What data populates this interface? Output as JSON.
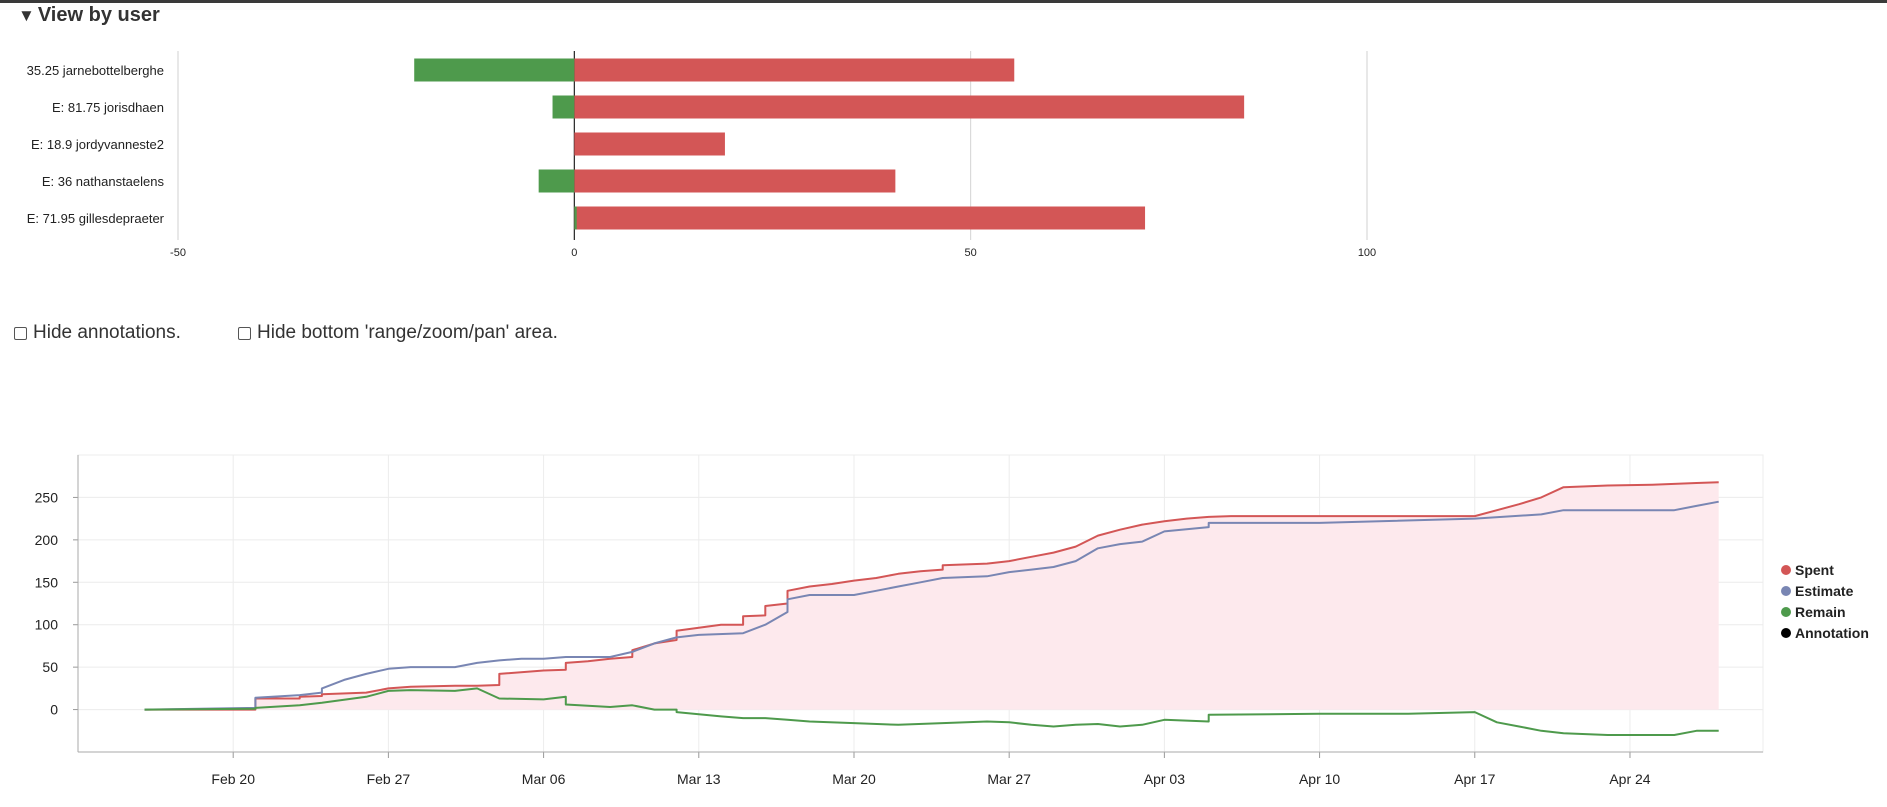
{
  "section": {
    "toggle_icon": "triangle-down-icon",
    "title": "View by user"
  },
  "options": {
    "hide_annotations": "Hide annotations.",
    "hide_bottom_area": "Hide bottom 'range/zoom/pan' area.",
    "hide_annotations_checked": false,
    "hide_bottom_area_checked": false
  },
  "colors": {
    "spent": "#d35656",
    "estimate": "#7986b3",
    "remain": "#4e9a4c",
    "annotation": "#000000",
    "fill": "#fde9ed"
  },
  "chart_data": [
    {
      "type": "bar",
      "orientation": "horizontal",
      "categories": [
        "35.25 jarnebottelberghe",
        "E: 81.75 jorisdhaen",
        "E: 18.9 jordyvanneste2",
        "E: 36 nathanstaelens",
        "E: 71.95 gillesdepraeter"
      ],
      "series": [
        {
          "color": "#d35656",
          "values": [
            55.5,
            84.5,
            19,
            40.5,
            72
          ]
        },
        {
          "color": "#4e9a4c",
          "values": [
            -20.2,
            -2.75,
            0,
            -4.5,
            0.3
          ]
        }
      ],
      "xlim": [
        -50,
        100
      ],
      "xticks": [
        "-50",
        "0",
        "50",
        "100"
      ],
      "xtick_values": [
        -50,
        0,
        50,
        100
      ],
      "grid": true
    },
    {
      "type": "line",
      "y_ticks": [
        "250",
        "200",
        "150",
        "100",
        "50",
        "0"
      ],
      "y_tick_values": [
        250,
        200,
        150,
        100,
        50,
        0
      ],
      "ylim": [
        -50,
        300
      ],
      "x_ticks": [
        "Feb 20",
        "Feb 27",
        "Mar 06",
        "Mar 13",
        "Mar 20",
        "Mar 27",
        "Apr 03",
        "Apr 10",
        "Apr 17",
        "Apr 24"
      ],
      "x_tick_values": [
        "2023-02-20",
        "2023-02-27",
        "2023-03-06",
        "2023-03-13",
        "2023-03-20",
        "2023-03-27",
        "2023-04-03",
        "2023-04-10",
        "2023-04-17",
        "2023-04-24"
      ],
      "xlim": [
        "2023-02-13",
        "2023-04-30"
      ],
      "legend": [
        "Spent",
        "Estimate",
        "Remain",
        "Annotation"
      ],
      "legend_position": "right",
      "grid": true,
      "series": [
        {
          "name": "Spent",
          "color": "#d35656",
          "fill": "#fde9ed",
          "points": [
            [
              "2023-02-16",
              0
            ],
            [
              "2023-02-21",
              0
            ],
            [
              "2023-02-21",
              13
            ],
            [
              "2023-02-23",
              13
            ],
            [
              "2023-02-23",
              15
            ],
            [
              "2023-02-24",
              16
            ],
            [
              "2023-02-24",
              18
            ],
            [
              "2023-02-26",
              20
            ],
            [
              "2023-02-27",
              25
            ],
            [
              "2023-02-28",
              27
            ],
            [
              "2023-03-02",
              28
            ],
            [
              "2023-03-03",
              28
            ],
            [
              "2023-03-04",
              29
            ],
            [
              "2023-03-04",
              42
            ],
            [
              "2023-03-06",
              46
            ],
            [
              "2023-03-07",
              47
            ],
            [
              "2023-03-07",
              55
            ],
            [
              "2023-03-08",
              57
            ],
            [
              "2023-03-09",
              60
            ],
            [
              "2023-03-10",
              62
            ],
            [
              "2023-03-10",
              70
            ],
            [
              "2023-03-11",
              78
            ],
            [
              "2023-03-12",
              82
            ],
            [
              "2023-03-12",
              93
            ],
            [
              "2023-03-14",
              100
            ],
            [
              "2023-03-15",
              100
            ],
            [
              "2023-03-15",
              110
            ],
            [
              "2023-03-16",
              111
            ],
            [
              "2023-03-16",
              122
            ],
            [
              "2023-03-17",
              125
            ],
            [
              "2023-03-17",
              140
            ],
            [
              "2023-03-18",
              145
            ],
            [
              "2023-03-19",
              148
            ],
            [
              "2023-03-20",
              152
            ],
            [
              "2023-03-21",
              155
            ],
            [
              "2023-03-22",
              160
            ],
            [
              "2023-03-23",
              163
            ],
            [
              "2023-03-24",
              165
            ],
            [
              "2023-03-24",
              170
            ],
            [
              "2023-03-26",
              172
            ],
            [
              "2023-03-27",
              175
            ],
            [
              "2023-03-28",
              180
            ],
            [
              "2023-03-29",
              185
            ],
            [
              "2023-03-30",
              192
            ],
            [
              "2023-03-31",
              205
            ],
            [
              "2023-04-01",
              212
            ],
            [
              "2023-04-02",
              218
            ],
            [
              "2023-04-03",
              222
            ],
            [
              "2023-04-04",
              225
            ],
            [
              "2023-04-05",
              227
            ],
            [
              "2023-04-06",
              228
            ],
            [
              "2023-04-10",
              228
            ],
            [
              "2023-04-17",
              228
            ],
            [
              "2023-04-18",
              235
            ],
            [
              "2023-04-19",
              242
            ],
            [
              "2023-04-20",
              250
            ],
            [
              "2023-04-21",
              262
            ],
            [
              "2023-04-23",
              264
            ],
            [
              "2023-04-25",
              265
            ],
            [
              "2023-04-27",
              267
            ],
            [
              "2023-04-28",
              268
            ]
          ]
        },
        {
          "name": "Estimate",
          "color": "#7986b3",
          "points": [
            [
              "2023-02-16",
              0
            ],
            [
              "2023-02-21",
              2
            ],
            [
              "2023-02-21",
              14
            ],
            [
              "2023-02-23",
              17
            ],
            [
              "2023-02-24",
              20
            ],
            [
              "2023-02-24",
              25
            ],
            [
              "2023-02-25",
              35
            ],
            [
              "2023-02-26",
              42
            ],
            [
              "2023-02-27",
              48
            ],
            [
              "2023-02-28",
              50
            ],
            [
              "2023-03-02",
              50
            ],
            [
              "2023-03-03",
              55
            ],
            [
              "2023-03-04",
              58
            ],
            [
              "2023-03-05",
              60
            ],
            [
              "2023-03-06",
              60
            ],
            [
              "2023-03-07",
              62
            ],
            [
              "2023-03-09",
              62
            ],
            [
              "2023-03-10",
              68
            ],
            [
              "2023-03-11",
              78
            ],
            [
              "2023-03-12",
              85
            ],
            [
              "2023-03-13",
              88
            ],
            [
              "2023-03-15",
              90
            ],
            [
              "2023-03-16",
              100
            ],
            [
              "2023-03-17",
              115
            ],
            [
              "2023-03-17",
              130
            ],
            [
              "2023-03-18",
              135
            ],
            [
              "2023-03-19",
              135
            ],
            [
              "2023-03-20",
              135
            ],
            [
              "2023-03-21",
              140
            ],
            [
              "2023-03-22",
              145
            ],
            [
              "2023-03-23",
              150
            ],
            [
              "2023-03-24",
              155
            ],
            [
              "2023-03-26",
              157
            ],
            [
              "2023-03-27",
              162
            ],
            [
              "2023-03-28",
              165
            ],
            [
              "2023-03-29",
              168
            ],
            [
              "2023-03-30",
              175
            ],
            [
              "2023-03-31",
              190
            ],
            [
              "2023-04-01",
              195
            ],
            [
              "2023-04-02",
              198
            ],
            [
              "2023-04-03",
              210
            ],
            [
              "2023-04-05",
              215
            ],
            [
              "2023-04-05",
              220
            ],
            [
              "2023-04-10",
              220
            ],
            [
              "2023-04-17",
              225
            ],
            [
              "2023-04-20",
              230
            ],
            [
              "2023-04-21",
              235
            ],
            [
              "2023-04-24",
              235
            ],
            [
              "2023-04-26",
              235
            ],
            [
              "2023-04-27",
              240
            ],
            [
              "2023-04-28",
              245
            ]
          ]
        },
        {
          "name": "Remain",
          "color": "#4e9a4c",
          "points": [
            [
              "2023-02-16",
              0
            ],
            [
              "2023-02-21",
              1
            ],
            [
              "2023-02-21",
              2
            ],
            [
              "2023-02-23",
              5
            ],
            [
              "2023-02-24",
              8
            ],
            [
              "2023-02-26",
              15
            ],
            [
              "2023-02-27",
              22
            ],
            [
              "2023-02-28",
              23
            ],
            [
              "2023-03-02",
              22
            ],
            [
              "2023-03-03",
              25
            ],
            [
              "2023-03-04",
              13
            ],
            [
              "2023-03-06",
              12
            ],
            [
              "2023-03-07",
              15
            ],
            [
              "2023-03-07",
              6
            ],
            [
              "2023-03-09",
              3
            ],
            [
              "2023-03-10",
              5
            ],
            [
              "2023-03-11",
              0
            ],
            [
              "2023-03-12",
              0
            ],
            [
              "2023-03-12",
              -3
            ],
            [
              "2023-03-14",
              -8
            ],
            [
              "2023-03-15",
              -10
            ],
            [
              "2023-03-16",
              -10
            ],
            [
              "2023-03-17",
              -12
            ],
            [
              "2023-03-18",
              -14
            ],
            [
              "2023-03-20",
              -16
            ],
            [
              "2023-03-22",
              -18
            ],
            [
              "2023-03-24",
              -16
            ],
            [
              "2023-03-26",
              -14
            ],
            [
              "2023-03-27",
              -15
            ],
            [
              "2023-03-28",
              -18
            ],
            [
              "2023-03-29",
              -20
            ],
            [
              "2023-03-30",
              -18
            ],
            [
              "2023-03-31",
              -17
            ],
            [
              "2023-04-01",
              -20
            ],
            [
              "2023-04-02",
              -18
            ],
            [
              "2023-04-03",
              -12
            ],
            [
              "2023-04-05",
              -14
            ],
            [
              "2023-04-05",
              -6
            ],
            [
              "2023-04-10",
              -5
            ],
            [
              "2023-04-14",
              -5
            ],
            [
              "2023-04-17",
              -3
            ],
            [
              "2023-04-18",
              -15
            ],
            [
              "2023-04-19",
              -20
            ],
            [
              "2023-04-20",
              -25
            ],
            [
              "2023-04-21",
              -28
            ],
            [
              "2023-04-23",
              -30
            ],
            [
              "2023-04-26",
              -30
            ],
            [
              "2023-04-27",
              -25
            ],
            [
              "2023-04-28",
              -25
            ]
          ]
        },
        {
          "name": "Annotation",
          "color": "#000000",
          "points": []
        }
      ]
    }
  ]
}
